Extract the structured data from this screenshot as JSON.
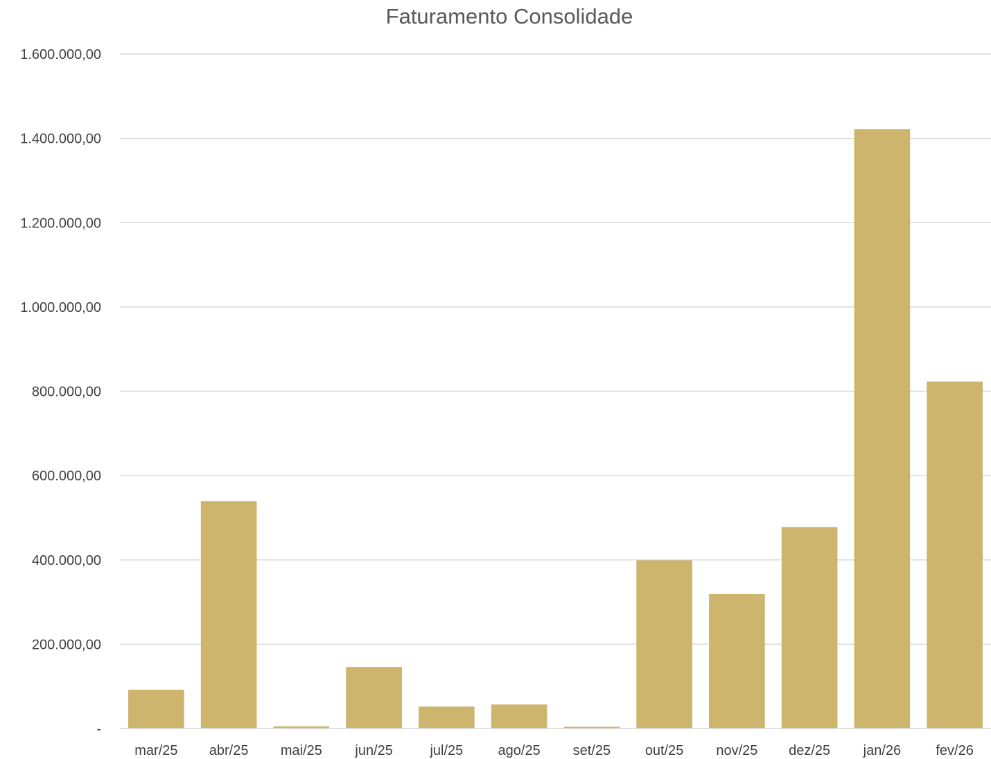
{
  "chart_data": {
    "type": "bar",
    "title": "Faturamento Consolidade",
    "xlabel": "",
    "ylabel": "",
    "categories": [
      "mar/25",
      "abr/25",
      "mai/25",
      "jun/25",
      "jul/25",
      "ago/25",
      "set/25",
      "out/25",
      "nov/25",
      "dez/25",
      "jan/26",
      "fev/26"
    ],
    "values": [
      92000,
      539000,
      5000,
      146000,
      52000,
      57000,
      4000,
      399000,
      319000,
      478000,
      1422000,
      823000
    ],
    "ylim": [
      0,
      1600000
    ],
    "yticks": [
      0,
      200000,
      400000,
      600000,
      800000,
      1000000,
      1200000,
      1400000,
      1600000
    ],
    "ytick_labels": [
      "-",
      "200.000,00",
      "400.000,00",
      "600.000,00",
      "800.000,00",
      "1.000.000,00",
      "1.200.000,00",
      "1.400.000,00",
      "1.600.000,00"
    ],
    "grid": true,
    "legend": "none",
    "colors": {
      "bar": "#CDB56D",
      "grid": "#D9D9D9",
      "title": "#595959",
      "tick": "#404040"
    }
  }
}
